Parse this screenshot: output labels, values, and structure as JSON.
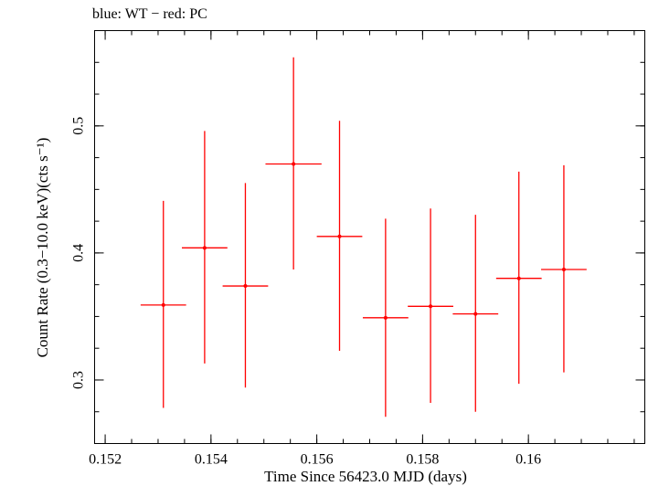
{
  "chart_data": {
    "type": "scatter",
    "title": "blue: WT − red: PC",
    "xlabel": "Time Since 56423.0 MJD (days)",
    "ylabel": "Count Rate (0.3−10.0 keV)(cts s⁻¹)",
    "xlim": [
      0.1518,
      0.1622
    ],
    "ylim": [
      0.25,
      0.575
    ],
    "x_ticks": [
      {
        "value": 0.152,
        "label": "0.152"
      },
      {
        "value": 0.154,
        "label": "0.154"
      },
      {
        "value": 0.156,
        "label": "0.156"
      },
      {
        "value": 0.158,
        "label": "0.158"
      },
      {
        "value": 0.16,
        "label": "0.16"
      }
    ],
    "y_ticks": [
      {
        "value": 0.3,
        "label": "0.3"
      },
      {
        "value": 0.4,
        "label": "0.4"
      },
      {
        "value": 0.5,
        "label": "0.5"
      }
    ],
    "x_minor_step": 0.0005,
    "y_minor_step": 0.025,
    "grid": false,
    "series": [
      {
        "color": "#ff0000",
        "points": [
          {
            "x": 0.1531,
            "xerr": 0.00043,
            "y": 0.359,
            "ylo": 0.278,
            "yhi": 0.441
          },
          {
            "x": 0.15388,
            "xerr": 0.00043,
            "y": 0.404,
            "ylo": 0.313,
            "yhi": 0.496
          },
          {
            "x": 0.15465,
            "xerr": 0.00043,
            "y": 0.374,
            "ylo": 0.294,
            "yhi": 0.455
          },
          {
            "x": 0.15556,
            "xerr": 0.00053,
            "y": 0.47,
            "ylo": 0.387,
            "yhi": 0.554
          },
          {
            "x": 0.15643,
            "xerr": 0.00043,
            "y": 0.413,
            "ylo": 0.323,
            "yhi": 0.504
          },
          {
            "x": 0.1573,
            "xerr": 0.00043,
            "y": 0.349,
            "ylo": 0.271,
            "yhi": 0.427
          },
          {
            "x": 0.15815,
            "xerr": 0.00043,
            "y": 0.358,
            "ylo": 0.282,
            "yhi": 0.435
          },
          {
            "x": 0.159,
            "xerr": 0.00043,
            "y": 0.352,
            "ylo": 0.275,
            "yhi": 0.43
          },
          {
            "x": 0.15982,
            "xerr": 0.00043,
            "y": 0.38,
            "ylo": 0.297,
            "yhi": 0.464
          },
          {
            "x": 0.16067,
            "xerr": 0.00043,
            "y": 0.387,
            "ylo": 0.306,
            "yhi": 0.469
          }
        ]
      }
    ]
  }
}
